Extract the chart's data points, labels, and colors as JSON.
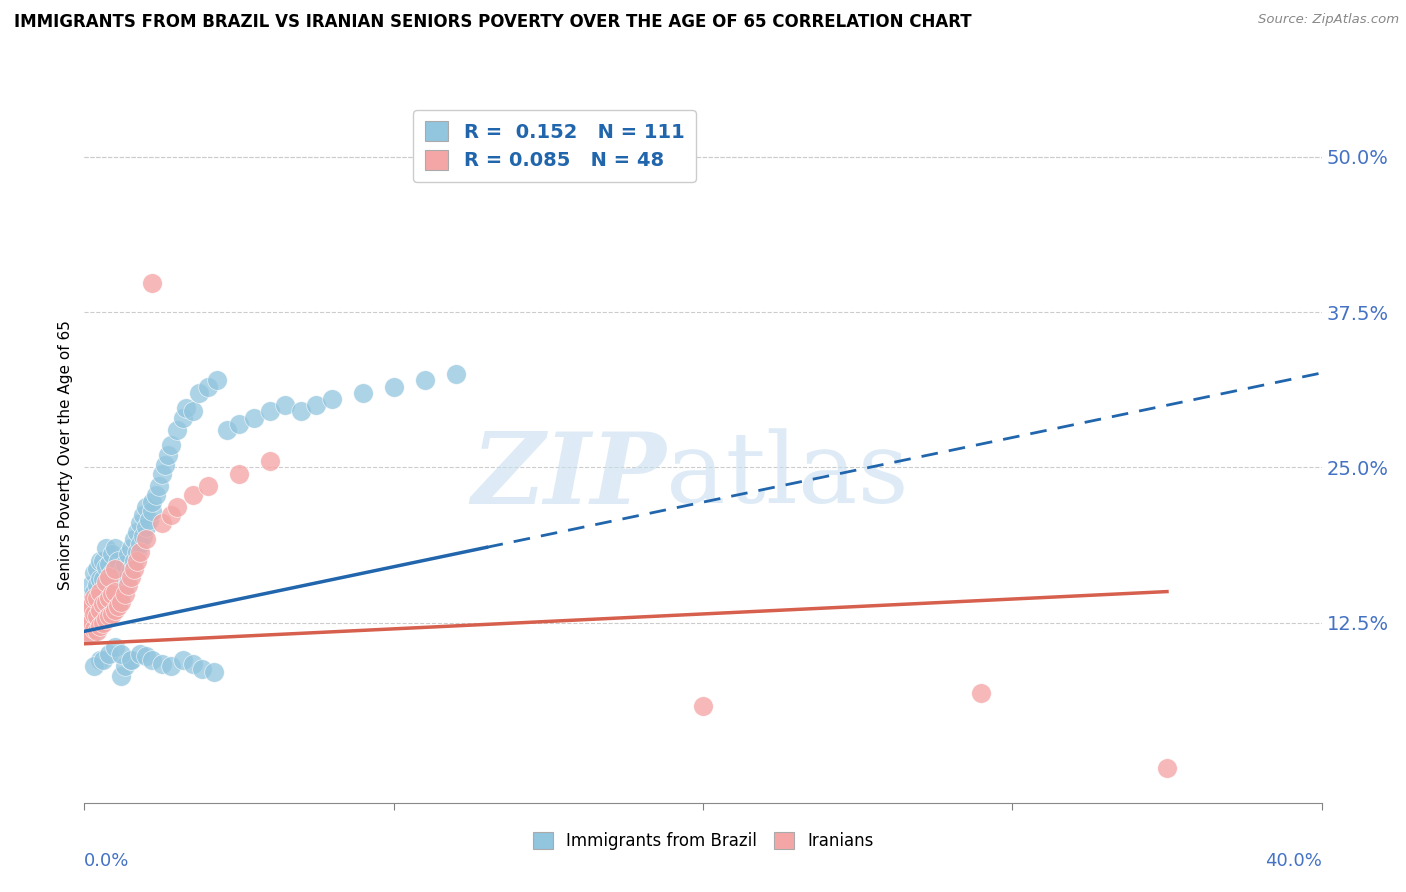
{
  "title": "IMMIGRANTS FROM BRAZIL VS IRANIAN SENIORS POVERTY OVER THE AGE OF 65 CORRELATION CHART",
  "source": "Source: ZipAtlas.com",
  "ylabel": "Seniors Poverty Over the Age of 65",
  "yticks": [
    0.0,
    0.125,
    0.25,
    0.375,
    0.5
  ],
  "ytick_labels": [
    "",
    "12.5%",
    "25.0%",
    "37.5%",
    "50.0%"
  ],
  "xlim": [
    0.0,
    0.4
  ],
  "ylim": [
    -0.02,
    0.54
  ],
  "brazil_R": 0.152,
  "brazil_N": 111,
  "iran_R": 0.085,
  "iran_N": 48,
  "brazil_color": "#92c5de",
  "iran_color": "#f4a6a6",
  "brazil_trend_color": "#2166ac",
  "iran_trend_color": "#d6604d",
  "brazil_trend_intercept": 0.118,
  "brazil_trend_slope": 0.52,
  "iran_trend_intercept": 0.108,
  "iran_trend_slope": 0.12,
  "brazil_scatter_x": [
    0.001,
    0.001,
    0.001,
    0.002,
    0.002,
    0.002,
    0.002,
    0.003,
    0.003,
    0.003,
    0.003,
    0.003,
    0.004,
    0.004,
    0.004,
    0.004,
    0.004,
    0.005,
    0.005,
    0.005,
    0.005,
    0.005,
    0.005,
    0.006,
    0.006,
    0.006,
    0.006,
    0.007,
    0.007,
    0.007,
    0.007,
    0.007,
    0.008,
    0.008,
    0.008,
    0.008,
    0.009,
    0.009,
    0.009,
    0.009,
    0.01,
    0.01,
    0.01,
    0.01,
    0.011,
    0.011,
    0.011,
    0.012,
    0.012,
    0.012,
    0.013,
    0.013,
    0.013,
    0.014,
    0.014,
    0.015,
    0.015,
    0.015,
    0.016,
    0.016,
    0.017,
    0.017,
    0.018,
    0.018,
    0.019,
    0.019,
    0.02,
    0.02,
    0.021,
    0.022,
    0.022,
    0.023,
    0.024,
    0.025,
    0.026,
    0.027,
    0.028,
    0.03,
    0.032,
    0.033,
    0.035,
    0.037,
    0.04,
    0.043,
    0.046,
    0.05,
    0.055,
    0.06,
    0.065,
    0.07,
    0.075,
    0.08,
    0.09,
    0.1,
    0.11,
    0.12,
    0.003,
    0.006,
    0.008,
    0.01,
    0.012,
    0.015,
    0.018,
    0.02,
    0.022,
    0.025,
    0.028,
    0.032,
    0.035,
    0.038,
    0.042
  ],
  "brazil_scatter_y": [
    0.12,
    0.13,
    0.145,
    0.115,
    0.125,
    0.14,
    0.155,
    0.118,
    0.128,
    0.138,
    0.15,
    0.165,
    0.12,
    0.13,
    0.142,
    0.155,
    0.168,
    0.125,
    0.135,
    0.148,
    0.16,
    0.175,
    0.095,
    0.13,
    0.145,
    0.16,
    0.175,
    0.128,
    0.14,
    0.155,
    0.17,
    0.185,
    0.132,
    0.145,
    0.158,
    0.172,
    0.135,
    0.15,
    0.165,
    0.18,
    0.138,
    0.152,
    0.168,
    0.185,
    0.142,
    0.158,
    0.175,
    0.148,
    0.165,
    0.082,
    0.155,
    0.172,
    0.09,
    0.162,
    0.18,
    0.168,
    0.185,
    0.095,
    0.175,
    0.192,
    0.182,
    0.198,
    0.188,
    0.205,
    0.195,
    0.212,
    0.202,
    0.218,
    0.208,
    0.215,
    0.222,
    0.228,
    0.235,
    0.245,
    0.252,
    0.26,
    0.268,
    0.28,
    0.29,
    0.298,
    0.295,
    0.31,
    0.315,
    0.32,
    0.28,
    0.285,
    0.29,
    0.295,
    0.3,
    0.295,
    0.3,
    0.305,
    0.31,
    0.315,
    0.32,
    0.325,
    0.09,
    0.095,
    0.1,
    0.105,
    0.1,
    0.095,
    0.1,
    0.098,
    0.095,
    0.092,
    0.09,
    0.095,
    0.092,
    0.088,
    0.085
  ],
  "iran_scatter_x": [
    0.001,
    0.001,
    0.001,
    0.002,
    0.002,
    0.002,
    0.003,
    0.003,
    0.003,
    0.004,
    0.004,
    0.004,
    0.005,
    0.005,
    0.005,
    0.006,
    0.006,
    0.007,
    0.007,
    0.007,
    0.008,
    0.008,
    0.008,
    0.009,
    0.009,
    0.01,
    0.01,
    0.01,
    0.011,
    0.012,
    0.013,
    0.014,
    0.015,
    0.016,
    0.017,
    0.018,
    0.02,
    0.022,
    0.025,
    0.028,
    0.03,
    0.035,
    0.04,
    0.05,
    0.06,
    0.2,
    0.29,
    0.35
  ],
  "iran_scatter_y": [
    0.118,
    0.128,
    0.14,
    0.115,
    0.125,
    0.138,
    0.12,
    0.132,
    0.145,
    0.118,
    0.13,
    0.145,
    0.122,
    0.135,
    0.15,
    0.125,
    0.14,
    0.128,
    0.142,
    0.158,
    0.13,
    0.145,
    0.162,
    0.132,
    0.148,
    0.135,
    0.15,
    0.168,
    0.138,
    0.142,
    0.148,
    0.155,
    0.162,
    0.168,
    0.175,
    0.182,
    0.192,
    0.398,
    0.205,
    0.212,
    0.218,
    0.228,
    0.235,
    0.245,
    0.255,
    0.058,
    0.068,
    0.008
  ]
}
